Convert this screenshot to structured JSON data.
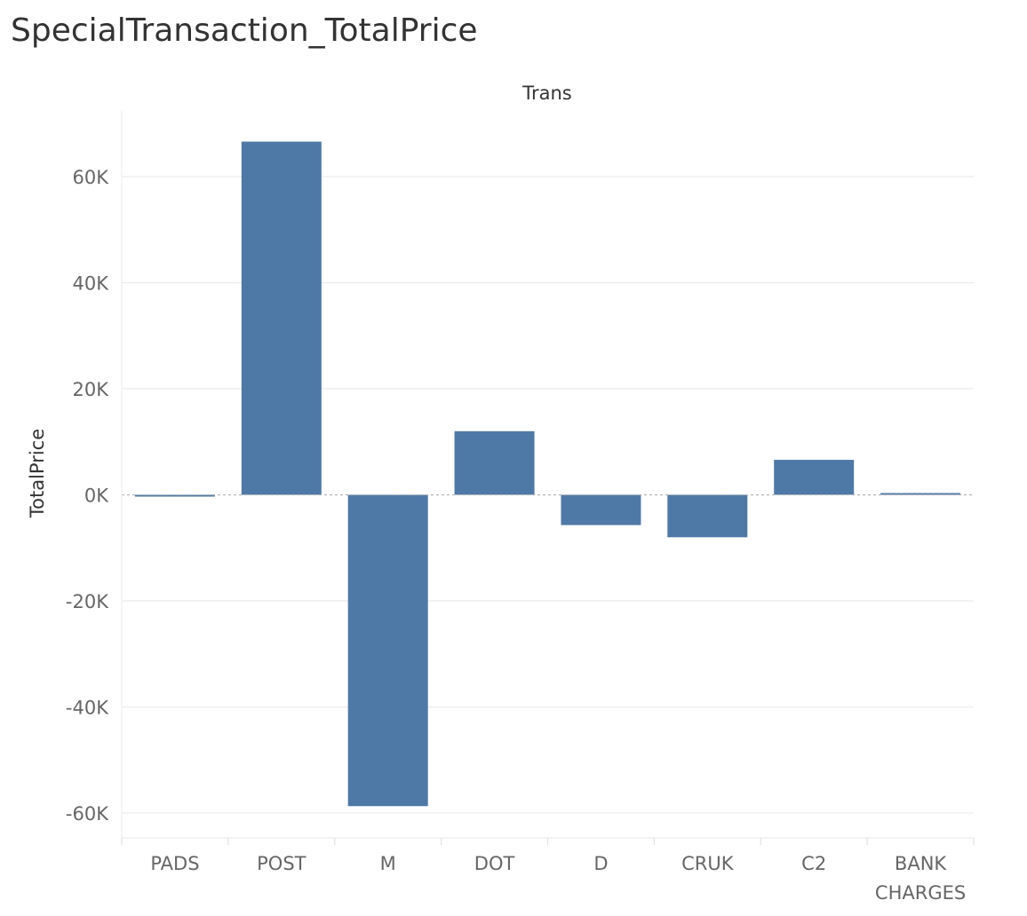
{
  "title": "SpecialTransaction_TotalPrice",
  "chart_data": {
    "type": "bar",
    "column_header": "Trans",
    "ylabel": "TotalPrice",
    "categories": [
      "PADS",
      "POST",
      "M",
      "DOT",
      "D",
      "CRUK",
      "C2",
      "BANK CHARGES"
    ],
    "category_lines": [
      [
        "PADS"
      ],
      [
        "POST"
      ],
      [
        "M"
      ],
      [
        "DOT"
      ],
      [
        "D"
      ],
      [
        "CRUK"
      ],
      [
        "C2"
      ],
      [
        "BANK",
        "CHARGES"
      ]
    ],
    "values": [
      -250,
      66600,
      -58700,
      12000,
      -5700,
      -8000,
      6600,
      300
    ],
    "ylim": [
      -64000,
      72000
    ],
    "yticks": [
      60000,
      40000,
      20000,
      0,
      -20000,
      -40000,
      -60000
    ],
    "ytick_labels": [
      "60K",
      "40K",
      "20K",
      "0K",
      "-20K",
      "-40K",
      "-60K"
    ],
    "grid": true,
    "zero_line": "dashed",
    "bar_color": "#4e79a7"
  }
}
